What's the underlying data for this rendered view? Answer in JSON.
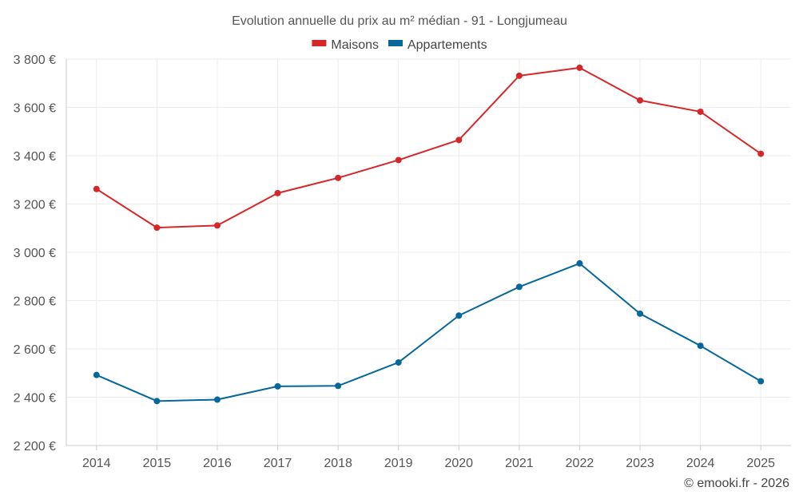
{
  "chart_data": {
    "type": "line",
    "title": "Evolution annuelle du prix au m² médian - 91 - Longjumeau",
    "categories": [
      "2014",
      "2015",
      "2016",
      "2017",
      "2018",
      "2019",
      "2020",
      "2021",
      "2022",
      "2023",
      "2024",
      "2025"
    ],
    "series": [
      {
        "name": "Maisons",
        "color": "#d62728",
        "values": [
          3262,
          3102,
          3111,
          3245,
          3308,
          3382,
          3465,
          3731,
          3764,
          3629,
          3582,
          3408
        ]
      },
      {
        "name": "Appartements",
        "color": "#05679b",
        "values": [
          2492,
          2384,
          2390,
          2445,
          2447,
          2544,
          2738,
          2857,
          2954,
          2746,
          2613,
          2466
        ]
      }
    ],
    "ylim": [
      2200,
      3800
    ],
    "yticks": [
      2200,
      2400,
      2600,
      2800,
      3000,
      3200,
      3400,
      3600,
      3800
    ],
    "ytick_labels": [
      "2 200 €",
      "2 400 €",
      "2 600 €",
      "2 800 €",
      "3 000 €",
      "3 200 €",
      "3 400 €",
      "3 600 €",
      "3 800 €"
    ],
    "xlabel": "",
    "ylabel": "",
    "grid": true,
    "legend_position": "top-center"
  },
  "credit": "© emooki.fr - 2026"
}
